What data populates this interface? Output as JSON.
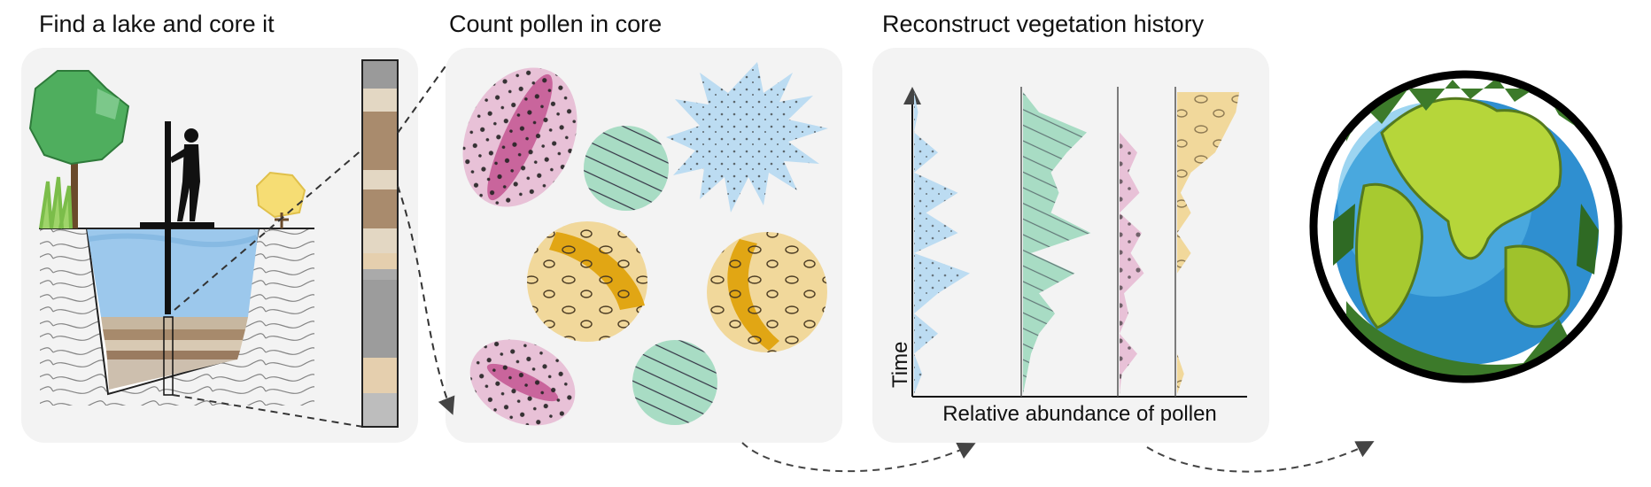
{
  "panels": [
    {
      "title": "Find a lake and core it"
    },
    {
      "title": "Count pollen in core"
    },
    {
      "title": "Reconstruct vegetation history"
    }
  ],
  "chart": {
    "ylabel": "Time",
    "xlabel": "Relative abundance of pollen"
  },
  "pollen_curves": [
    {
      "key": "blue",
      "fill": "#bcdcf2",
      "values": [
        0.0,
        0.1,
        0.0,
        0.3,
        0.0,
        0.3,
        0.7,
        0.0,
        0.55,
        0.15,
        0.55,
        0.0,
        0.3,
        0.0,
        0.05,
        0.0
      ]
    },
    {
      "key": "green",
      "fill": "#a8dcc4",
      "values": [
        0.0,
        0.05,
        0.1,
        0.2,
        0.4,
        0.2,
        0.65,
        0.1,
        0.85,
        0.35,
        0.45,
        0.35,
        0.55,
        0.8,
        0.2,
        0.0
      ]
    },
    {
      "key": "pink",
      "fill": "#e8c1d7",
      "values": [
        0.0,
        0.05,
        0.4,
        0.0,
        0.2,
        0.1,
        0.55,
        0.25,
        0.5,
        0.0,
        0.45,
        0.2,
        0.4,
        0.0,
        0.0,
        0.0
      ]
    },
    {
      "key": "yellow",
      "fill": "#f1d89b",
      "values": [
        0.0,
        0.1,
        0.0,
        0.0,
        0.0,
        0.0,
        0.0,
        0.2,
        0.0,
        0.2,
        0.05,
        0.2,
        0.55,
        0.7,
        0.85,
        0.9
      ]
    }
  ],
  "colors": {
    "panel_bg": "#f3f3f3",
    "water": "#9cc8ec",
    "pink_pollen": "#e8c1d7",
    "green_pollen": "#a8dcc4",
    "blue_pollen": "#bcdcf2",
    "yellow_pollen": "#f1d89b"
  },
  "icons": [
    "tree-icon",
    "person-coring-icon",
    "bush-icon",
    "sediment-core-icon",
    "earth-globe-icon"
  ]
}
